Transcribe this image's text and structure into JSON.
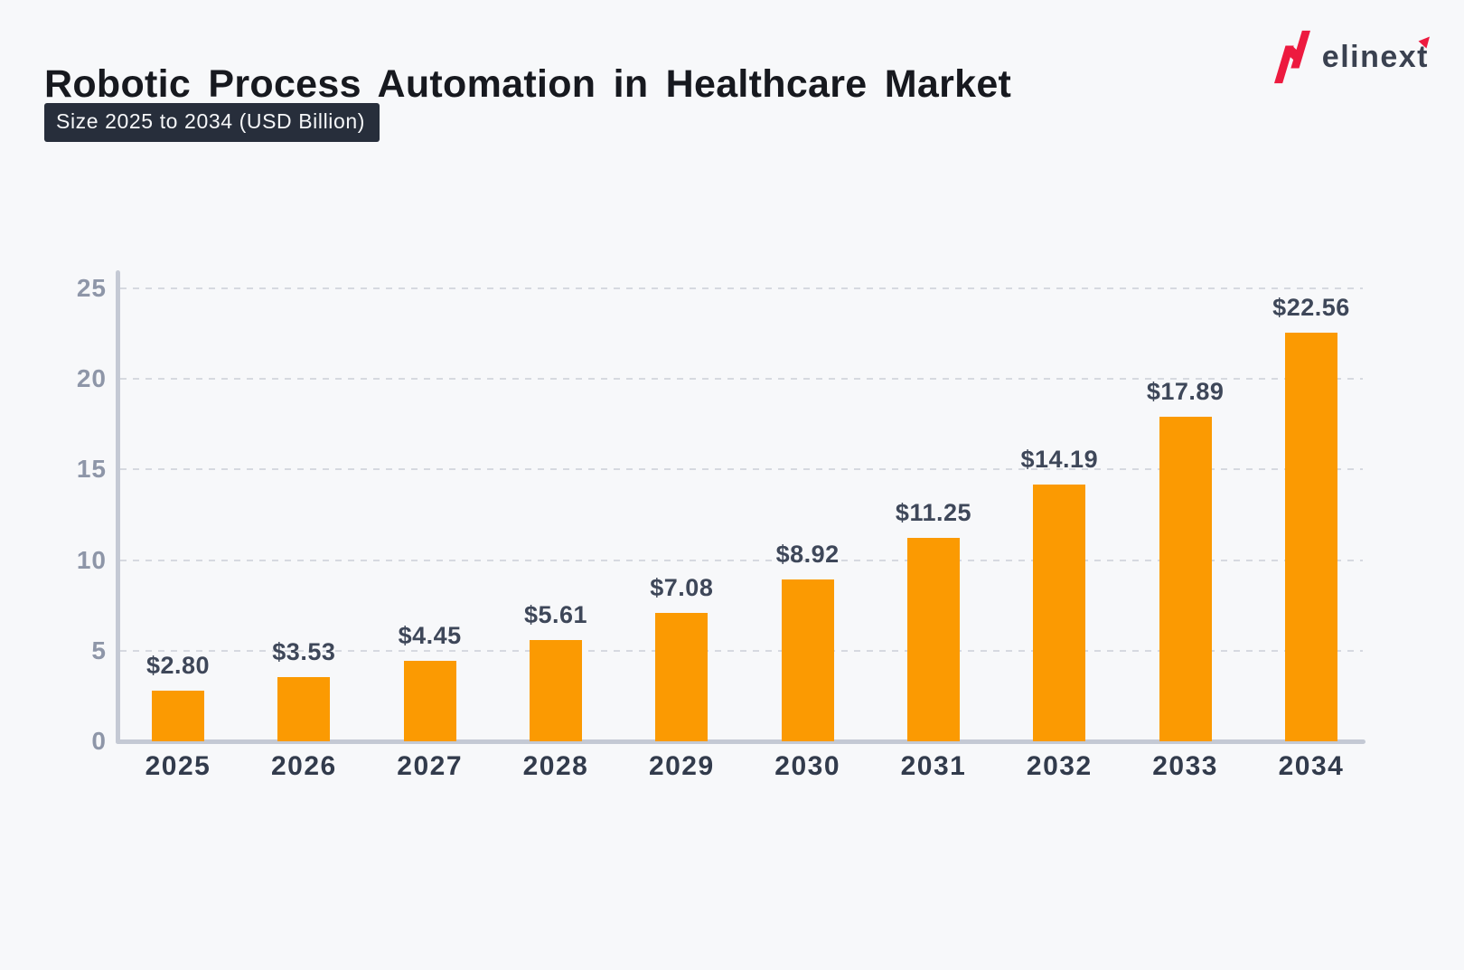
{
  "header": {
    "title": "Robotic Process Automation in Healthcare Market",
    "subtitle_badge": "Size 2025 to 2034 (USD Billion)",
    "brand": "elinext"
  },
  "colors": {
    "background": "#F7F8FA",
    "bar_orange": "#FB9A02",
    "badge_background": "#272E3B",
    "badge_text": "#F5F6F8",
    "title_text": "#17191F",
    "value_label": "#3E4759",
    "year_label": "#323B4C",
    "axis_tick_label": "#8E96A8",
    "axis_line": "#C4C9D4",
    "grid_line": "#D6D9E0",
    "logo_red": "#ED1A3F",
    "logo_text": "#3A4150"
  },
  "chart_data": {
    "type": "bar",
    "title": "Robotic Process Automation in Healthcare Market",
    "subtitle": "Size 2025 to 2034 (USD Billion)",
    "unit": "USD Billion",
    "categories": [
      "2025",
      "2026",
      "2027",
      "2028",
      "2029",
      "2030",
      "2031",
      "2032",
      "2033",
      "2034"
    ],
    "values": [
      2.8,
      3.53,
      4.45,
      5.61,
      7.08,
      8.92,
      11.25,
      14.19,
      17.89,
      22.56
    ],
    "value_labels": [
      "$2.80",
      "$3.53",
      "$4.45",
      "$5.61",
      "$7.08",
      "$8.92",
      "$11.25",
      "$14.19",
      "$17.89",
      "$22.56"
    ],
    "xlabel": "",
    "ylabel": "",
    "ylim": [
      0,
      25
    ],
    "y_ticks": [
      0,
      5,
      10,
      15,
      20,
      25
    ],
    "grid": "horizontal-dashed",
    "legend_position": "none",
    "bar_color": "#FB9A02"
  }
}
